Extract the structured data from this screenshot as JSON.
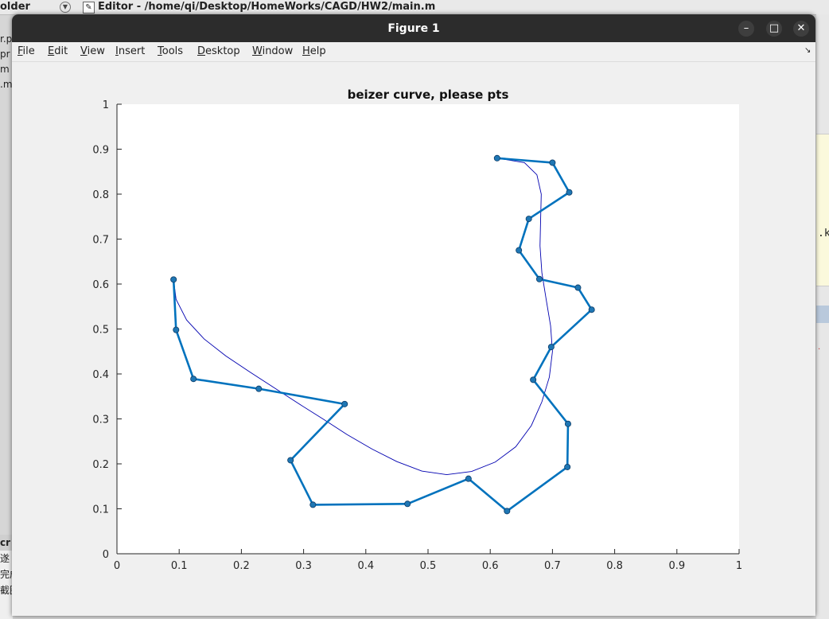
{
  "background": {
    "folder_label": "older",
    "editor_title": "Editor - /home/qi/Desktop/HomeWorks/CAGD/HW2/main.m",
    "left_files": [
      "r.p",
      "pr",
      "m",
      ".m"
    ],
    "left_bottom_header": "cr",
    "left_bottom_rows": [
      "遂",
      "完成",
      "截图时画板..."
    ],
    "right_text": ".k"
  },
  "window": {
    "title": "Figure 1",
    "minimize_icon": "–",
    "maximize_icon": "□",
    "close_icon": "✕"
  },
  "menu": [
    "File",
    "Edit",
    "View",
    "Insert",
    "Tools",
    "Desktop",
    "Window",
    "Help"
  ],
  "colors": {
    "polygon": "#0072BD",
    "curve": "#0000b0",
    "marker_fill": "#1f77b4"
  },
  "chart_data": {
    "type": "line",
    "title": "beizer curve, please pts",
    "xlabel": "",
    "ylabel": "",
    "xlim": [
      0,
      1
    ],
    "ylim": [
      0,
      1
    ],
    "xticks": [
      "0",
      "0.1",
      "0.2",
      "0.3",
      "0.4",
      "0.5",
      "0.6",
      "0.7",
      "0.8",
      "0.9",
      "1"
    ],
    "yticks": [
      "0",
      "0.1",
      "0.2",
      "0.3",
      "0.4",
      "0.5",
      "0.6",
      "0.7",
      "0.8",
      "0.9",
      "1"
    ],
    "grid": false,
    "series": [
      {
        "kind": "control-polygon",
        "points": [
          [
            0.091,
            0.61
          ],
          [
            0.095,
            0.498
          ],
          [
            0.123,
            0.389
          ],
          [
            0.228,
            0.367
          ],
          [
            0.366,
            0.333
          ],
          [
            0.279,
            0.208
          ],
          [
            0.315,
            0.109
          ],
          [
            0.467,
            0.111
          ],
          [
            0.565,
            0.167
          ],
          [
            0.627,
            0.095
          ],
          [
            0.724,
            0.193
          ],
          [
            0.725,
            0.289
          ],
          [
            0.669,
            0.387
          ],
          [
            0.698,
            0.46
          ],
          [
            0.763,
            0.543
          ],
          [
            0.741,
            0.592
          ],
          [
            0.679,
            0.611
          ],
          [
            0.646,
            0.675
          ],
          [
            0.662,
            0.745
          ],
          [
            0.727,
            0.804
          ],
          [
            0.7,
            0.87
          ],
          [
            0.611,
            0.88
          ]
        ]
      },
      {
        "kind": "bezier-curve",
        "points": [
          [
            0.091,
            0.61
          ],
          [
            0.095,
            0.566
          ],
          [
            0.112,
            0.52
          ],
          [
            0.14,
            0.478
          ],
          [
            0.175,
            0.44
          ],
          [
            0.214,
            0.404
          ],
          [
            0.253,
            0.369
          ],
          [
            0.292,
            0.334
          ],
          [
            0.331,
            0.3
          ],
          [
            0.37,
            0.265
          ],
          [
            0.41,
            0.233
          ],
          [
            0.45,
            0.205
          ],
          [
            0.49,
            0.184
          ],
          [
            0.53,
            0.176
          ],
          [
            0.57,
            0.183
          ],
          [
            0.608,
            0.204
          ],
          [
            0.641,
            0.238
          ],
          [
            0.666,
            0.285
          ],
          [
            0.683,
            0.338
          ],
          [
            0.695,
            0.393
          ],
          [
            0.7,
            0.45
          ],
          [
            0.697,
            0.507
          ],
          [
            0.69,
            0.565
          ],
          [
            0.683,
            0.625
          ],
          [
            0.68,
            0.685
          ],
          [
            0.681,
            0.745
          ],
          [
            0.682,
            0.8
          ],
          [
            0.675,
            0.843
          ],
          [
            0.655,
            0.87
          ],
          [
            0.611,
            0.88
          ]
        ]
      }
    ]
  }
}
